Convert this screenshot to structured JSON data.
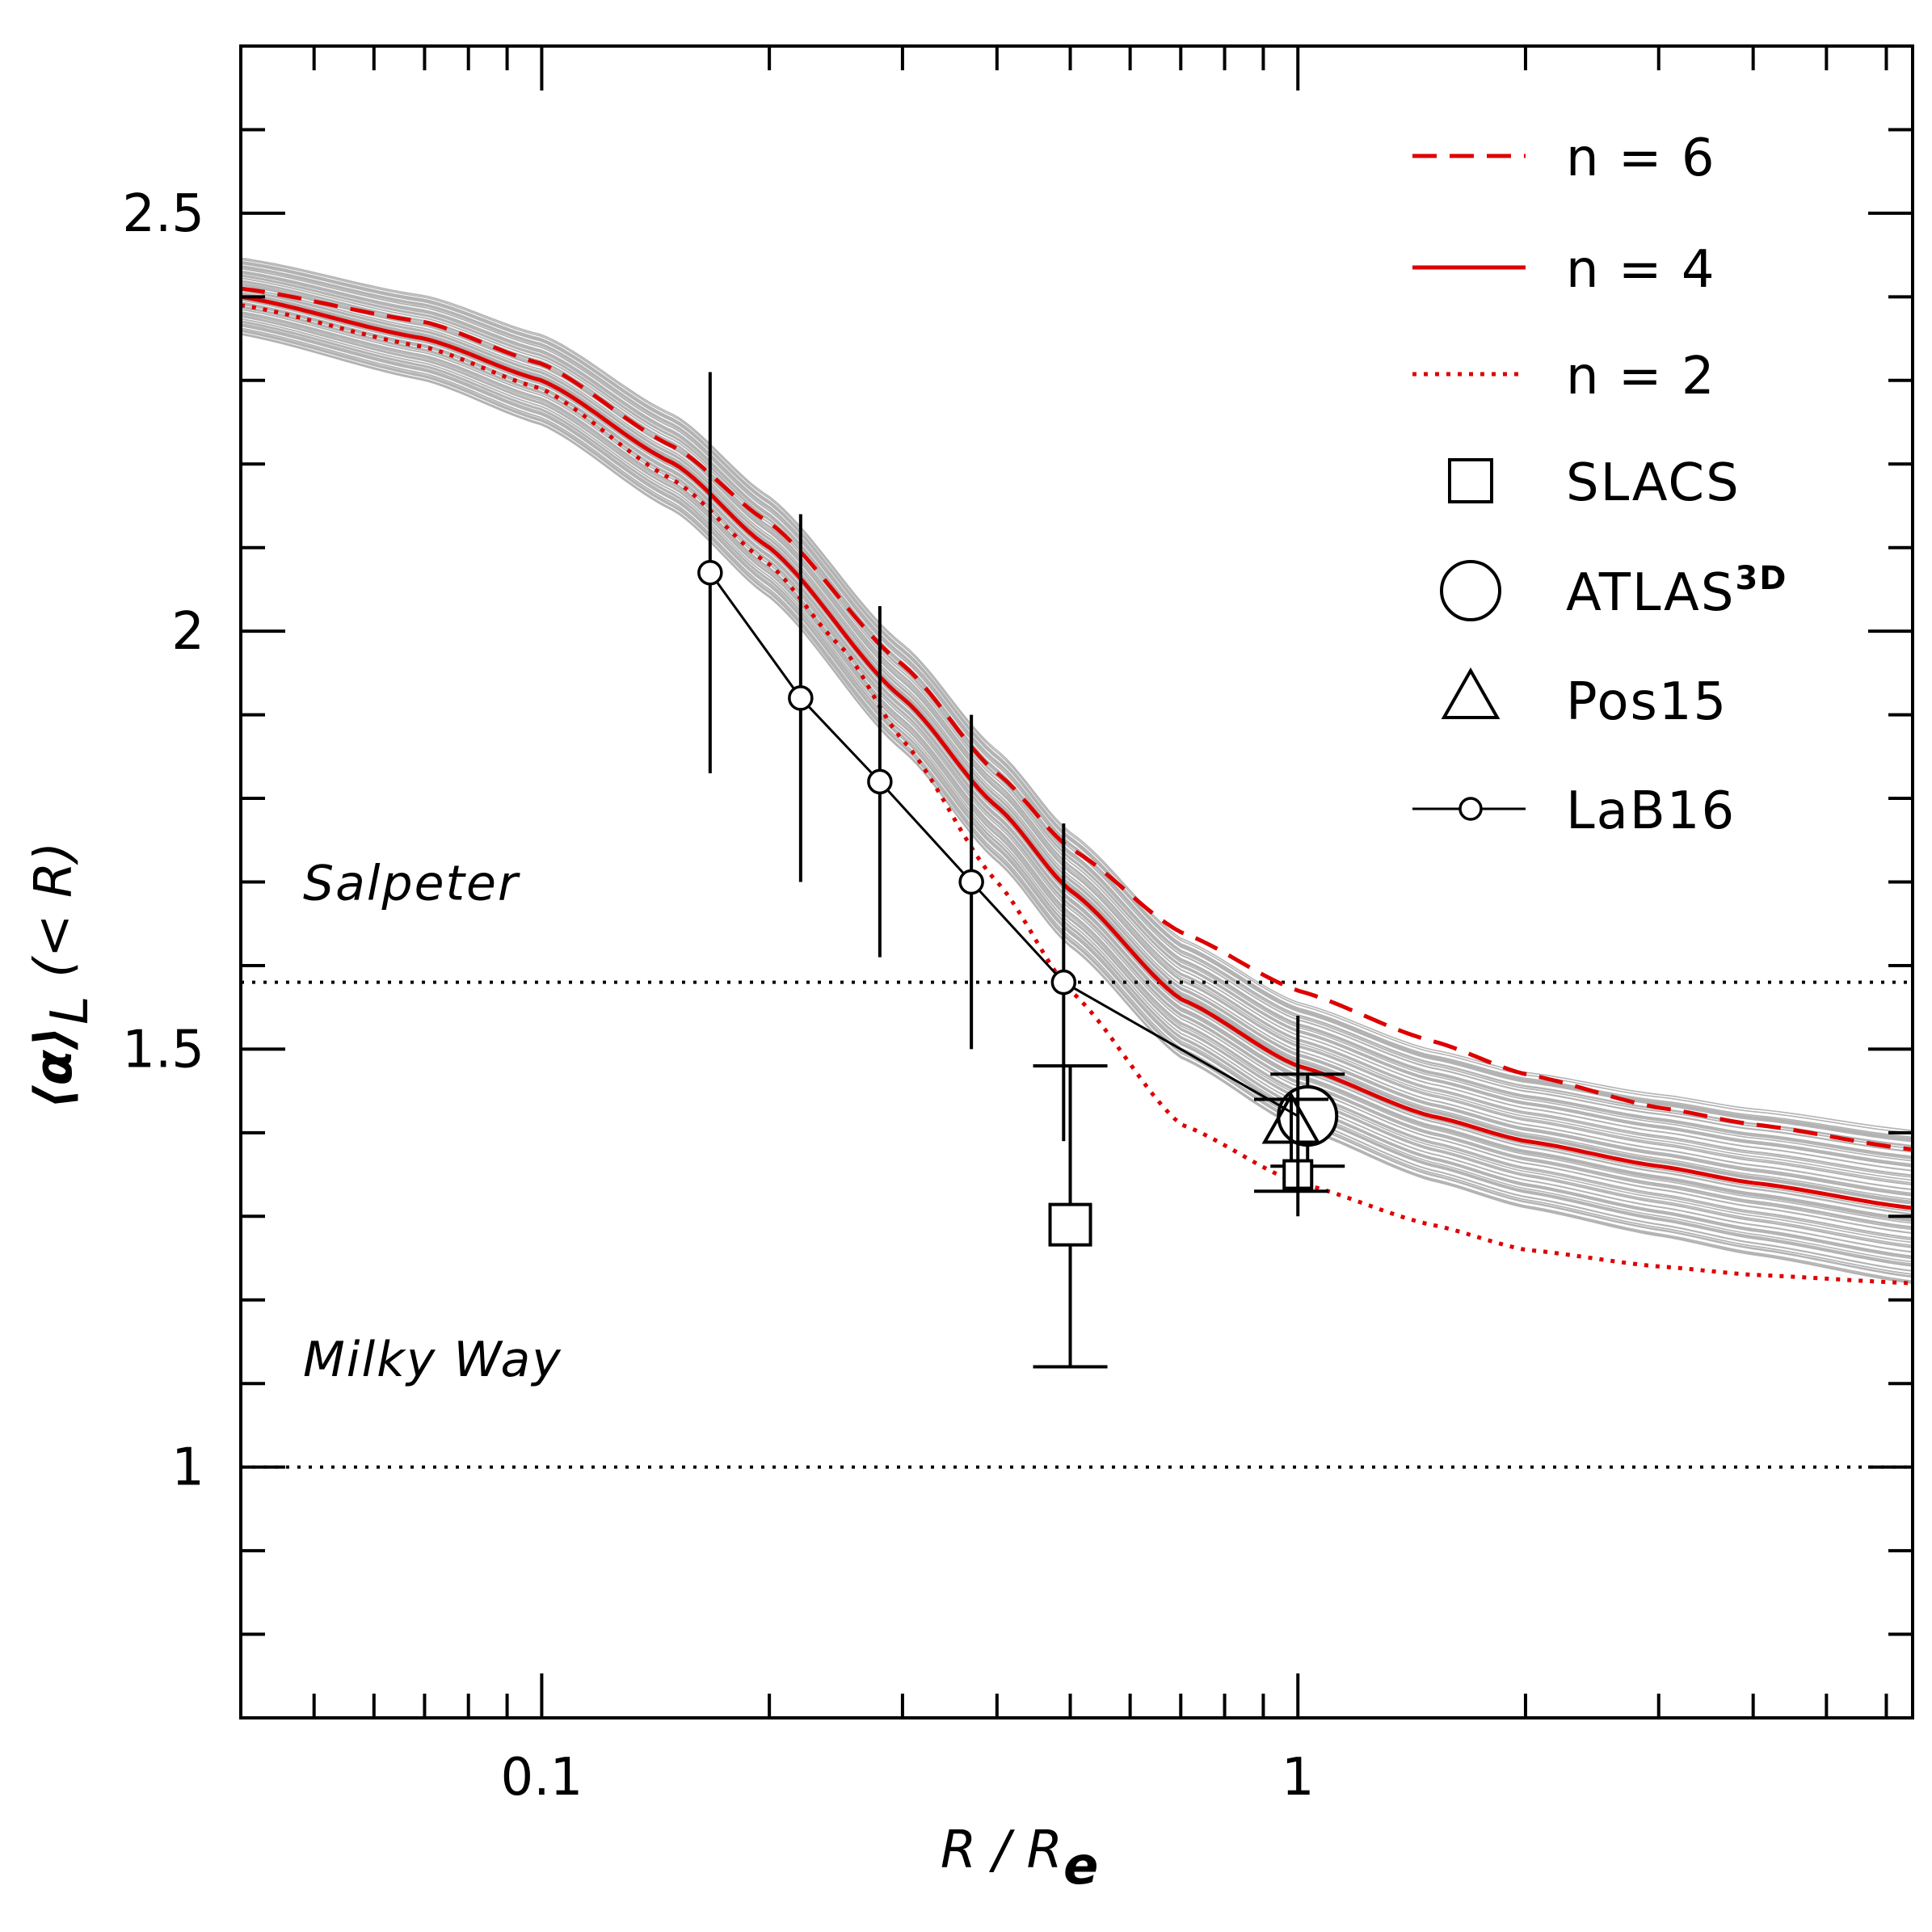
{
  "chart_data": {
    "type": "line",
    "xscale": "log",
    "xlim": [
      0.04,
      6.5
    ],
    "ylim": [
      0.7,
      2.7
    ],
    "xlabel": "R / R",
    "xlabel_sub": "e",
    "ylabel": "⟨α⟩",
    "ylabel_sub": "L",
    "ylabel_suffix": "(< R)",
    "x_ticks": [
      {
        "value": 0.1,
        "label": "0.1"
      },
      {
        "value": 1,
        "label": "1"
      }
    ],
    "y_ticks": [
      {
        "value": 1,
        "label": "1"
      },
      {
        "value": 1.5,
        "label": "1.5"
      },
      {
        "value": 2,
        "label": "2"
      },
      {
        "value": 2.5,
        "label": "2.5"
      }
    ],
    "reference_lines": [
      {
        "name": "Salpeter",
        "label": "Salpeter",
        "y": 1.58,
        "style": "dotted"
      },
      {
        "name": "Milky Way",
        "label": "Milky Way",
        "y": 1.0,
        "style": "dotted"
      }
    ],
    "model_curves": {
      "color": "#dd0000",
      "series": [
        {
          "name": "n = 6",
          "style": "dashed",
          "x": [
            0.04,
            0.07,
            0.1,
            0.15,
            0.2,
            0.3,
            0.4,
            0.5,
            0.7,
            1.0,
            1.5,
            2,
            3,
            4,
            6.5
          ],
          "y": [
            2.41,
            2.37,
            2.32,
            2.22,
            2.13,
            1.96,
            1.83,
            1.74,
            1.64,
            1.57,
            1.51,
            1.47,
            1.43,
            1.41,
            1.38
          ]
        },
        {
          "name": "n = 4",
          "style": "solid",
          "x": [
            0.04,
            0.07,
            0.1,
            0.15,
            0.2,
            0.3,
            0.4,
            0.5,
            0.7,
            1.0,
            1.5,
            2,
            3,
            4,
            6.5
          ],
          "y": [
            2.4,
            2.35,
            2.3,
            2.2,
            2.1,
            1.92,
            1.79,
            1.69,
            1.56,
            1.48,
            1.42,
            1.39,
            1.36,
            1.34,
            1.31
          ]
        },
        {
          "name": "n = 2",
          "style": "dotted",
          "x": [
            0.04,
            0.07,
            0.1,
            0.15,
            0.2,
            0.25,
            0.3,
            0.4,
            0.5,
            0.7,
            1.0,
            1.5,
            2,
            3,
            4,
            6.5
          ],
          "y": [
            2.39,
            2.34,
            2.29,
            2.18,
            2.08,
            1.98,
            1.87,
            1.7,
            1.57,
            1.41,
            1.34,
            1.29,
            1.26,
            1.24,
            1.23,
            1.22
          ]
        }
      ]
    },
    "posterior_band": {
      "color": "#b3b3b3",
      "count": 90,
      "spread_low": 0.045,
      "spread_high": 0.09
    },
    "observations": [
      {
        "name": "SLACS",
        "marker": "square",
        "x": 0.5,
        "y": 1.29,
        "yerr_low": 0.17,
        "yerr_high": 0.19,
        "capped": true
      },
      {
        "name": "ATLAS3D",
        "marker": "circle",
        "x": 1.03,
        "y": 1.42,
        "yerr_low": 0.06,
        "yerr_high": 0.05,
        "capped": true
      },
      {
        "name": "Pos15",
        "marker": "triangle",
        "x": 0.98,
        "y": 1.41,
        "yerr_low": 0.08,
        "yerr_high": 0.03,
        "capped": true
      },
      {
        "name": "SLACS_1",
        "marker": "square",
        "x": 1.0,
        "y": 1.35,
        "yerr_low": 0.0,
        "yerr_high": 0.0,
        "capped": false
      },
      {
        "name": "LaB16",
        "marker": "small-circle-line",
        "x": [
          0.167,
          0.22,
          0.28,
          0.37,
          0.49,
          1.0
        ],
        "y": [
          2.07,
          1.92,
          1.82,
          1.7,
          1.58,
          1.42
        ],
        "yerr": [
          0.24,
          0.22,
          0.21,
          0.2,
          0.19,
          0.12
        ],
        "capped": false
      }
    ],
    "legend": {
      "position": "top-right",
      "entries": [
        {
          "label": "n = 6",
          "symbol": "dashed-red"
        },
        {
          "label": "n = 4",
          "symbol": "solid-red"
        },
        {
          "label": "n = 2",
          "symbol": "dotted-red"
        },
        {
          "label": "SLACS",
          "symbol": "square"
        },
        {
          "label": "ATLAS",
          "label_sup": "3D",
          "symbol": "circle"
        },
        {
          "label": "Pos15",
          "symbol": "triangle"
        },
        {
          "label": "LaB16",
          "symbol": "small-circle-line"
        }
      ]
    }
  }
}
